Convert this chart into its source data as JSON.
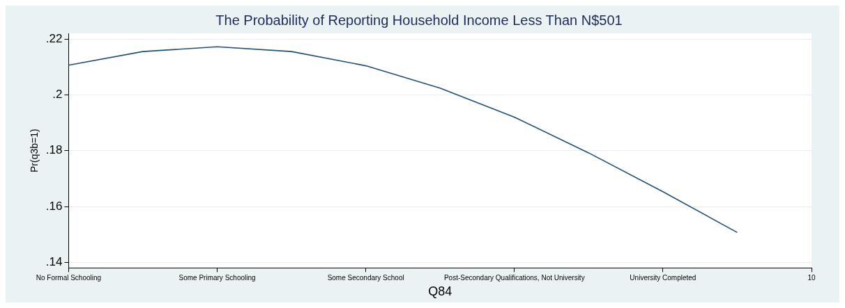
{
  "chart_data": {
    "type": "line",
    "title": "The Probability of Reporting Household Income Less Than N$501",
    "xlabel": "Q84",
    "ylabel": "Pr(q3b=1)",
    "categories": [
      "No Formal Schooling",
      null,
      "Some Primary Schooling",
      null,
      "Some Secondary School",
      null,
      "Post-Secondary Qualifications, Not University",
      null,
      "University Completed",
      null,
      "10"
    ],
    "series": [
      {
        "color": "#1f4e79",
        "values": [
          0.2106,
          0.2155,
          0.2172,
          0.2155,
          0.2104,
          0.2024,
          0.192,
          0.1792,
          0.1653,
          0.1507,
          null
        ]
      }
    ],
    "ylim": [
      0.138,
      0.222
    ],
    "yticks": [
      {
        "value": 0.14,
        "label": ".14"
      },
      {
        "value": 0.16,
        "label": ".16"
      },
      {
        "value": 0.18,
        "label": ".18"
      },
      {
        "value": 0.2,
        "label": ".2"
      },
      {
        "value": 0.22,
        "label": ".22"
      }
    ],
    "grid": "y",
    "legend": false,
    "marker": "none",
    "line_style": "solid"
  }
}
